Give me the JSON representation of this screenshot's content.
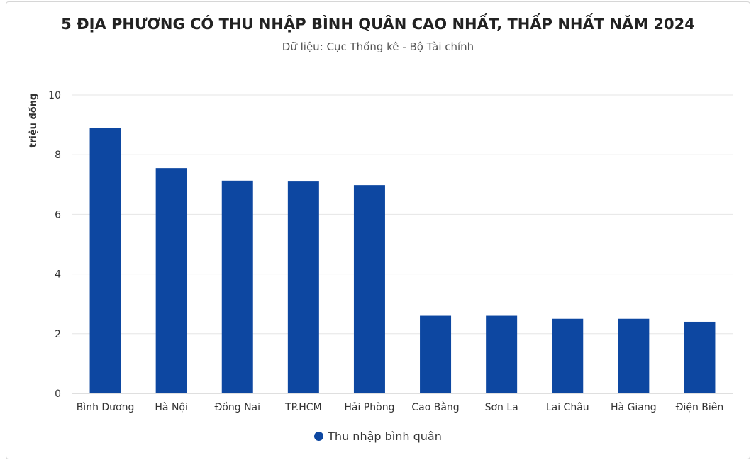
{
  "chart_data": {
    "type": "bar",
    "title": "5 ĐỊA PHƯƠNG CÓ THU NHẬP BÌNH QUÂN CAO NHẤT, THẤP NHẤT NĂM 2024",
    "subtitle": "Dữ liệu: Cục Thống kê - Bộ Tài chính",
    "xlabel": "",
    "ylabel": "triệu đồng",
    "categories": [
      "Bình Dương",
      "Hà Nội",
      "Đồng Nai",
      "TP.HCM",
      "Hải Phòng",
      "Cao Bằng",
      "Sơn La",
      "Lai Châu",
      "Hà Giang",
      "Điện Biên"
    ],
    "series": [
      {
        "name": "Thu nhập bình quân",
        "values": [
          8.9,
          7.55,
          7.13,
          7.1,
          6.98,
          2.6,
          2.6,
          2.5,
          2.5,
          2.4
        ],
        "color": "#0d47a1"
      }
    ],
    "ylim": [
      0,
      10
    ],
    "yticks": [
      "0",
      "2",
      "4",
      "6",
      "8",
      "10"
    ],
    "grid": true,
    "legend_position": "bottom"
  }
}
